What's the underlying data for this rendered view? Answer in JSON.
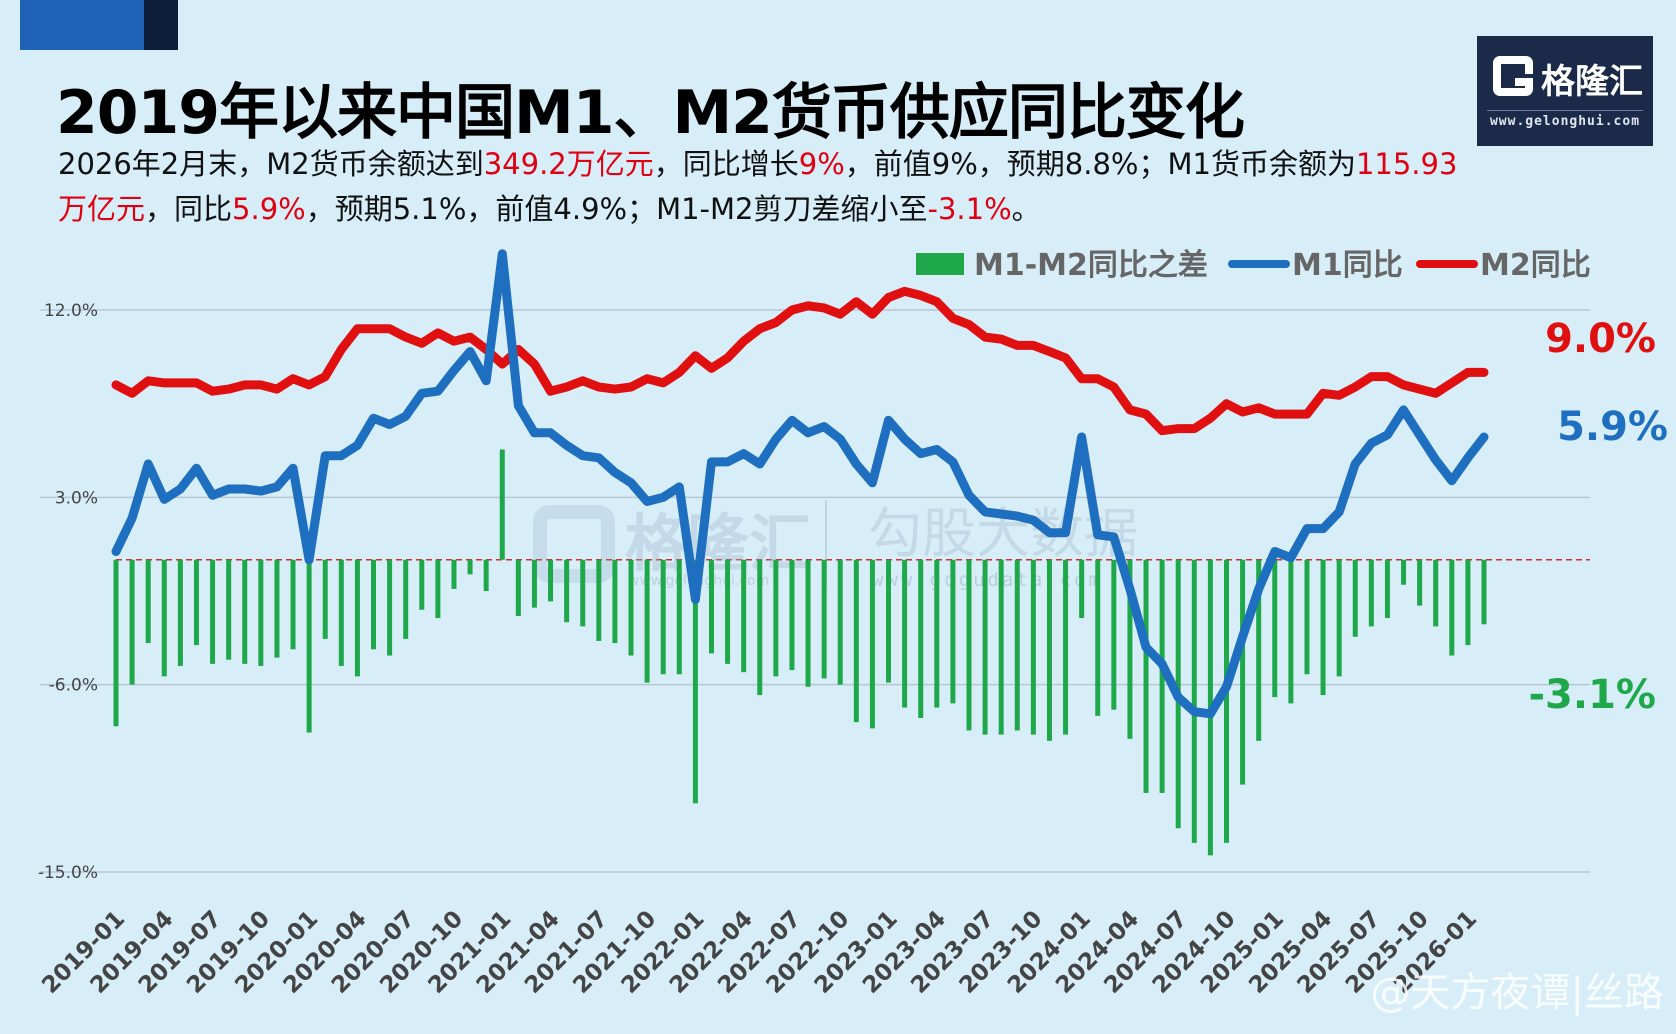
{
  "header": {
    "title": "2019年以来中国M1、M2货币供应同比变化",
    "subtitle_parts": [
      {
        "text": "2026年2月末，M2货币余额达到",
        "color": "#111111"
      },
      {
        "text": "349.2万亿元",
        "color": "#e00012"
      },
      {
        "text": "，同比增长",
        "color": "#111111"
      },
      {
        "text": "9%",
        "color": "#e00012"
      },
      {
        "text": "，前值9%，预期8.8%；M1货币余额为",
        "color": "#111111"
      },
      {
        "text": "115.93万亿元",
        "color": "#e00012"
      },
      {
        "text": "，同比",
        "color": "#111111"
      },
      {
        "text": "5.9%",
        "color": "#e00012"
      },
      {
        "text": "，预期5.1%，前值4.9%；M1-M2剪刀差缩小至",
        "color": "#111111"
      },
      {
        "text": "-3.1%",
        "color": "#e00012"
      },
      {
        "text": "。",
        "color": "#111111"
      }
    ]
  },
  "logo": {
    "name": "格隆汇",
    "url": "www.gelonghui.com"
  },
  "watermarks": {
    "left_cn": "格隆汇",
    "left_url": "www.gelonghui.com",
    "right_cn": "勾股大数据",
    "right_url": "www.gogudata.com"
  },
  "social_watermark": "@天方夜谭|丝路",
  "colors": {
    "m1": "#1f6fc0",
    "m2": "#e01010",
    "diff": "#1fa84a",
    "grid": "#b8c6d2",
    "zero_line": "#d03030"
  },
  "chart_data": {
    "type": "line",
    "title": "2019年以来中国M1、M2货币供应同比变化",
    "ylim": [
      -15,
      15
    ],
    "yticks": [
      12,
      3,
      -6,
      -15
    ],
    "ytick_labels": [
      "12.0%",
      "3.0%",
      "-6.0%",
      "-15.0%"
    ],
    "start_month": "2019-01",
    "xtick_labels": [
      "2019-01",
      "2019-04",
      "2019-07",
      "2019-10",
      "2020-01",
      "2020-04",
      "2020-07",
      "2020-10",
      "2021-01",
      "2021-04",
      "2021-07",
      "2021-10",
      "2022-01",
      "2022-04",
      "2022-07",
      "2022-10",
      "2023-01",
      "2023-04",
      "2023-07",
      "2023-10",
      "2024-01",
      "2024-04",
      "2024-07",
      "2024-10",
      "2025-01",
      "2025-04",
      "2025-07",
      "2025-10",
      "2026-01"
    ],
    "legend": [
      "M1-M2同比之差",
      "M1同比",
      "M2同比"
    ],
    "series": [
      {
        "name": "M1同比",
        "type": "line",
        "color": "#1f6fc0",
        "values": [
          0.4,
          2.0,
          4.6,
          2.9,
          3.4,
          4.4,
          3.1,
          3.4,
          3.4,
          3.3,
          3.5,
          4.4,
          0.0,
          5.0,
          5.0,
          5.5,
          6.8,
          6.5,
          6.9,
          8.0,
          8.1,
          9.1,
          10.0,
          8.6,
          14.7,
          7.4,
          6.1,
          6.1,
          5.5,
          5.0,
          4.9,
          4.2,
          3.7,
          2.8,
          3.0,
          3.5,
          -1.9,
          4.7,
          4.7,
          5.1,
          4.6,
          5.8,
          6.7,
          6.1,
          6.4,
          5.8,
          4.6,
          3.7,
          6.7,
          5.8,
          5.1,
          5.3,
          4.7,
          3.1,
          2.3,
          2.2,
          2.1,
          1.9,
          1.3,
          1.3,
          5.9,
          1.2,
          1.1,
          -1.4,
          -4.2,
          -5.0,
          -6.6,
          -7.3,
          -7.4,
          -6.1,
          -3.7,
          -1.4,
          0.4,
          0.1,
          1.5,
          1.5,
          2.3,
          4.6,
          5.6,
          6.0,
          7.2,
          6.0,
          4.8,
          3.8,
          4.9,
          5.9
        ]
      },
      {
        "name": "M2同比",
        "type": "line",
        "color": "#e01010",
        "values": [
          8.4,
          8.0,
          8.6,
          8.5,
          8.5,
          8.5,
          8.1,
          8.2,
          8.4,
          8.4,
          8.2,
          8.7,
          8.4,
          8.8,
          10.1,
          11.1,
          11.1,
          11.1,
          10.7,
          10.4,
          10.9,
          10.5,
          10.7,
          10.1,
          9.4,
          10.1,
          9.4,
          8.1,
          8.3,
          8.6,
          8.3,
          8.2,
          8.3,
          8.7,
          8.5,
          9.0,
          9.8,
          9.2,
          9.7,
          10.5,
          11.1,
          11.4,
          12.0,
          12.2,
          12.1,
          11.8,
          12.4,
          11.8,
          12.6,
          12.9,
          12.7,
          12.4,
          11.6,
          11.3,
          10.7,
          10.6,
          10.3,
          10.3,
          10.0,
          9.7,
          8.7,
          8.7,
          8.3,
          7.2,
          7.0,
          6.2,
          6.3,
          6.3,
          6.8,
          7.5,
          7.1,
          7.3,
          7.0,
          7.0,
          7.0,
          8.0,
          7.9,
          8.3,
          8.8,
          8.8,
          8.4,
          8.2,
          8.0,
          8.5,
          9.0,
          9.0
        ]
      },
      {
        "name": "M1-M2同比之差",
        "type": "bar",
        "color": "#1fa84a",
        "values": [
          -8.0,
          -6.0,
          -4.0,
          -5.6,
          -5.1,
          -4.1,
          -5.0,
          -4.8,
          -5.0,
          -5.1,
          -4.7,
          -4.3,
          -8.3,
          -3.8,
          -5.1,
          -5.6,
          -4.3,
          -4.6,
          -3.8,
          -2.4,
          -2.8,
          -1.4,
          -0.7,
          -1.5,
          5.3,
          -2.7,
          -2.3,
          -2.0,
          -3.0,
          -3.2,
          -3.9,
          -4.0,
          -4.6,
          -5.9,
          -5.5,
          -5.5,
          -11.7,
          -4.5,
          -5.0,
          -5.4,
          -6.5,
          -5.6,
          -5.3,
          -6.1,
          -5.7,
          -6.0,
          -7.8,
          -8.1,
          -5.9,
          -7.1,
          -7.6,
          -7.1,
          -6.9,
          -8.2,
          -8.4,
          -8.4,
          -8.2,
          -8.4,
          -8.7,
          -8.4,
          -2.8,
          -7.5,
          -7.2,
          -8.6,
          -11.2,
          -11.2,
          -12.9,
          -13.6,
          -14.2,
          -13.6,
          -10.8,
          -8.7,
          -6.6,
          -6.9,
          -5.5,
          -6.5,
          -5.6,
          -3.7,
          -3.2,
          -2.8,
          -1.2,
          -2.2,
          -3.2,
          -4.6,
          -4.1,
          -3.1
        ]
      }
    ],
    "end_labels": {
      "m2": "9.0%",
      "m1": "5.9%",
      "diff": "-3.1%"
    }
  }
}
